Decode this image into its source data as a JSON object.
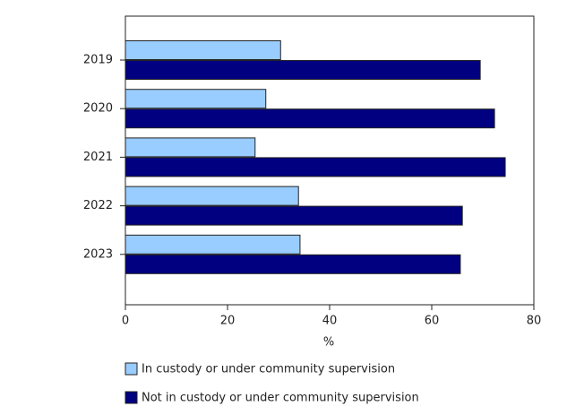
{
  "chart_data": {
    "type": "bar",
    "orientation": "horizontal",
    "categories": [
      "2019",
      "2020",
      "2021",
      "2022",
      "2023"
    ],
    "series": [
      {
        "name": "In custody or under community supervision",
        "color": "#99ccff",
        "values": [
          30.4,
          27.5,
          25.4,
          33.9,
          34.2
        ]
      },
      {
        "name": "Not in custody or under community supervision",
        "color": "#000080",
        "values": [
          69.5,
          72.3,
          74.4,
          66.0,
          65.6
        ]
      }
    ],
    "xlabel": "%",
    "xlim": [
      0,
      80
    ],
    "xticks": [
      0,
      20,
      40,
      60,
      80
    ],
    "grid": false
  }
}
